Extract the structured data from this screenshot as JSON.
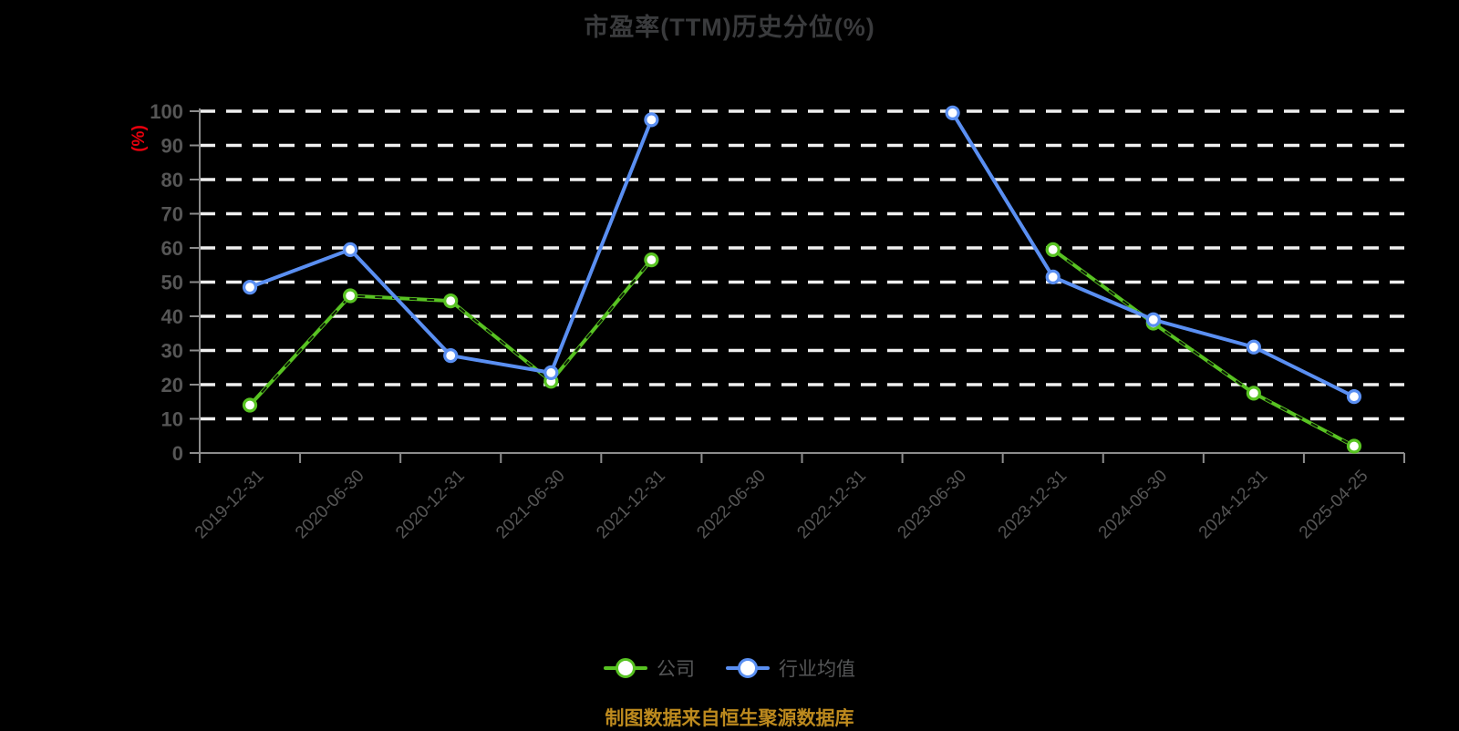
{
  "title": "市盈率(TTM)历史分位(%)",
  "y_axis_name": "(%)",
  "caption": "制图数据来自恒生聚源数据库",
  "legend": [
    {
      "label": "公司",
      "color": "#58c322"
    },
    {
      "label": "行业均值",
      "color": "#5a8ff2"
    }
  ],
  "colors": {
    "background": "#000000",
    "title": "#3a3b3d",
    "grid_line": "#f0f0f0",
    "axis_line": "#8c8c8c",
    "tick_label": "#565656",
    "y_axis_name": "#e8000d",
    "series_company": "#58c322",
    "series_industry": "#5a8ff2",
    "marker_fill": "#ffffff",
    "caption": "#bd8a1e"
  },
  "chart_data": {
    "type": "line",
    "title": "市盈率(TTM)历史分位(%)",
    "ylabel": "(%)",
    "xlabel": "",
    "ylim": [
      0,
      100
    ],
    "yticks": [
      0,
      10,
      20,
      30,
      40,
      50,
      60,
      70,
      80,
      90,
      100
    ],
    "grid": true,
    "grid_style": "dashed",
    "legend_position": "bottom",
    "categories": [
      "2019-12-31",
      "2020-06-30",
      "2020-12-31",
      "2021-06-30",
      "2021-12-31",
      "2022-06-30",
      "2022-12-31",
      "2023-06-30",
      "2023-12-31",
      "2024-06-30",
      "2024-12-31",
      "2025-04-25"
    ],
    "series": [
      {
        "name": "公司",
        "color": "#58c322",
        "shadow_dash": true,
        "values": [
          14,
          46,
          44.5,
          21,
          56.5,
          null,
          null,
          null,
          59.5,
          38,
          17.5,
          2
        ]
      },
      {
        "name": "行业均值",
        "color": "#5a8ff2",
        "shadow_dash": false,
        "values": [
          48.5,
          59.5,
          28.5,
          23.5,
          97.5,
          null,
          null,
          99.5,
          51.5,
          39,
          31,
          16.5
        ]
      }
    ]
  }
}
